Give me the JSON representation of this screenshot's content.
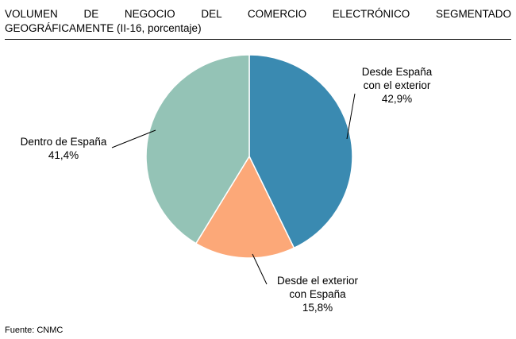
{
  "chart_data": {
    "type": "pie",
    "title_line1": "VOLUMEN DE NEGOCIO DEL COMERCIO ELECTRÓNICO SEGMENTADO",
    "title_line2": "GEOGRÁFICAMENTE (II-16, porcentaje)",
    "unit": "porcentaje",
    "start_angle_deg": 0,
    "direction": "clockwise",
    "slices": [
      {
        "label_lines": [
          "Desde España",
          "con el exterior"
        ],
        "value": 42.9,
        "value_label": "42,9%",
        "color": "#3a8ab1",
        "label_pos": "right"
      },
      {
        "label_lines": [
          "Desde el exterior",
          "con España"
        ],
        "value": 15.8,
        "value_label": "15,8%",
        "color": "#fca878",
        "label_pos": "bottom"
      },
      {
        "label_lines": [
          "Dentro de España"
        ],
        "value": 41.4,
        "value_label": "41,4%",
        "color": "#94c3b6",
        "label_pos": "left"
      }
    ],
    "legend": "none",
    "grid": false
  },
  "footer": {
    "source": "Fuente: CNMC"
  }
}
